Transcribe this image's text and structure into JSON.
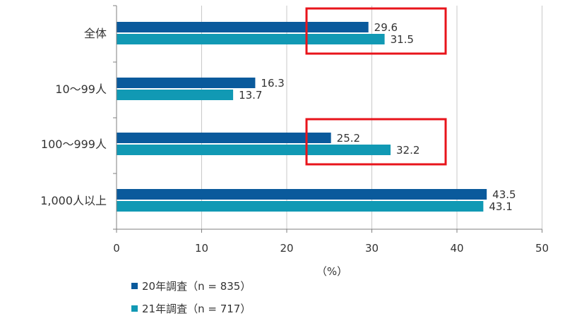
{
  "chart_data": {
    "type": "bar",
    "orientation": "horizontal",
    "categories": [
      "全体",
      "10～99人",
      "100～999人",
      "1,000人以上"
    ],
    "series": [
      {
        "name": "20年調査（n = 835）",
        "values": [
          29.6,
          16.3,
          25.2,
          43.5
        ],
        "color": "#0a5a9c"
      },
      {
        "name": "21年調査（n = 717）",
        "values": [
          31.5,
          13.7,
          32.2,
          43.1
        ],
        "color": "#1199b4"
      }
    ],
    "data_labels": {
      "0": [
        "29.6",
        "16.3",
        "25.2",
        "43.5"
      ],
      "1": [
        "31.5",
        "13.7",
        "32.2",
        "43.1"
      ]
    },
    "xlabel": "（%）",
    "xlim": [
      0,
      50
    ],
    "xticks": [
      0,
      10,
      20,
      30,
      40,
      50
    ],
    "grid": true,
    "legend_position": "bottom-left",
    "highlighted_categories": [
      "全体",
      "100～999人"
    ],
    "highlight_color": "#e8141b"
  }
}
